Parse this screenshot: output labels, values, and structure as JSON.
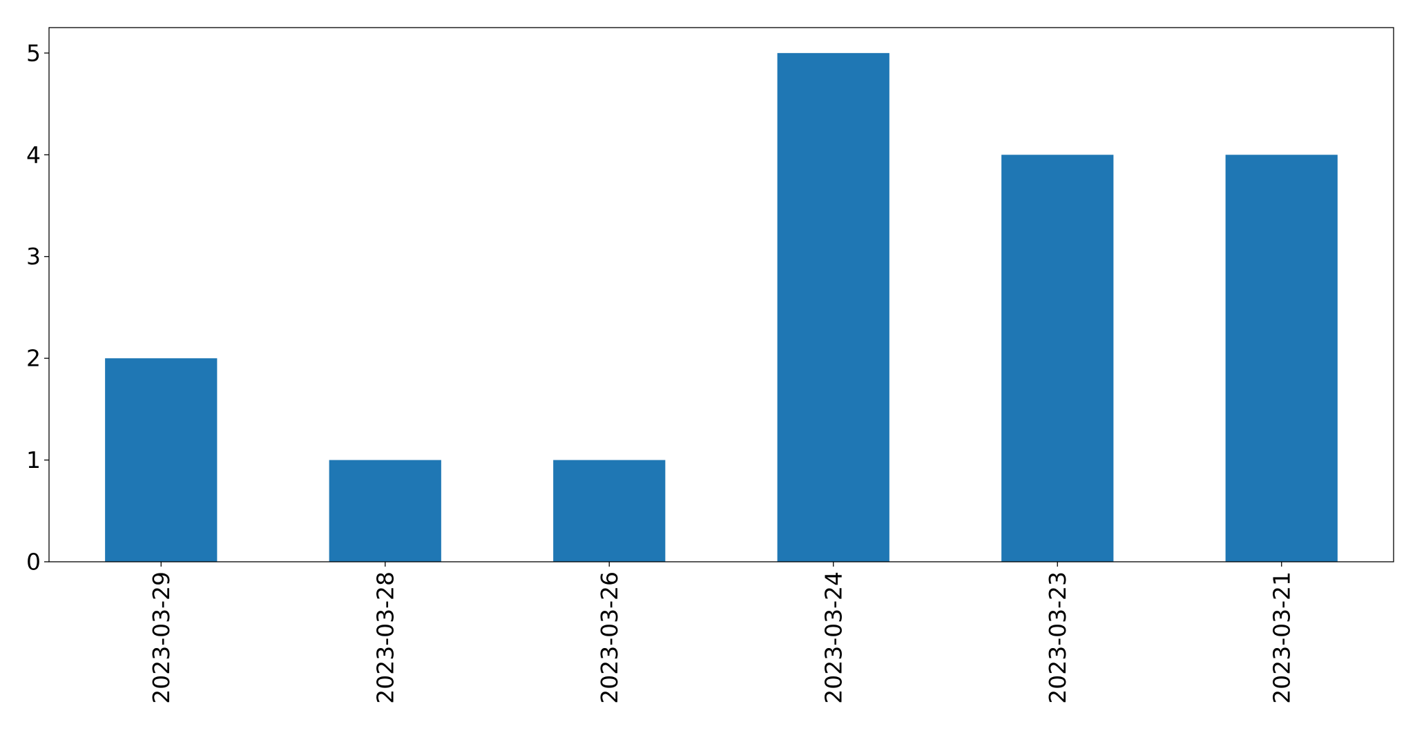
{
  "chart_data": {
    "type": "bar",
    "categories": [
      "2023-03-29",
      "2023-03-28",
      "2023-03-26",
      "2023-03-24",
      "2023-03-23",
      "2023-03-21"
    ],
    "values": [
      2,
      1,
      1,
      5,
      4,
      4
    ],
    "title": "",
    "xlabel": "",
    "ylabel": "",
    "ylim": [
      0,
      5.25
    ],
    "yticks": [
      0,
      1,
      2,
      3,
      4,
      5
    ],
    "grid": false,
    "legend": "none",
    "bar_color": "#1f77b4",
    "axis_color": "#000000"
  }
}
